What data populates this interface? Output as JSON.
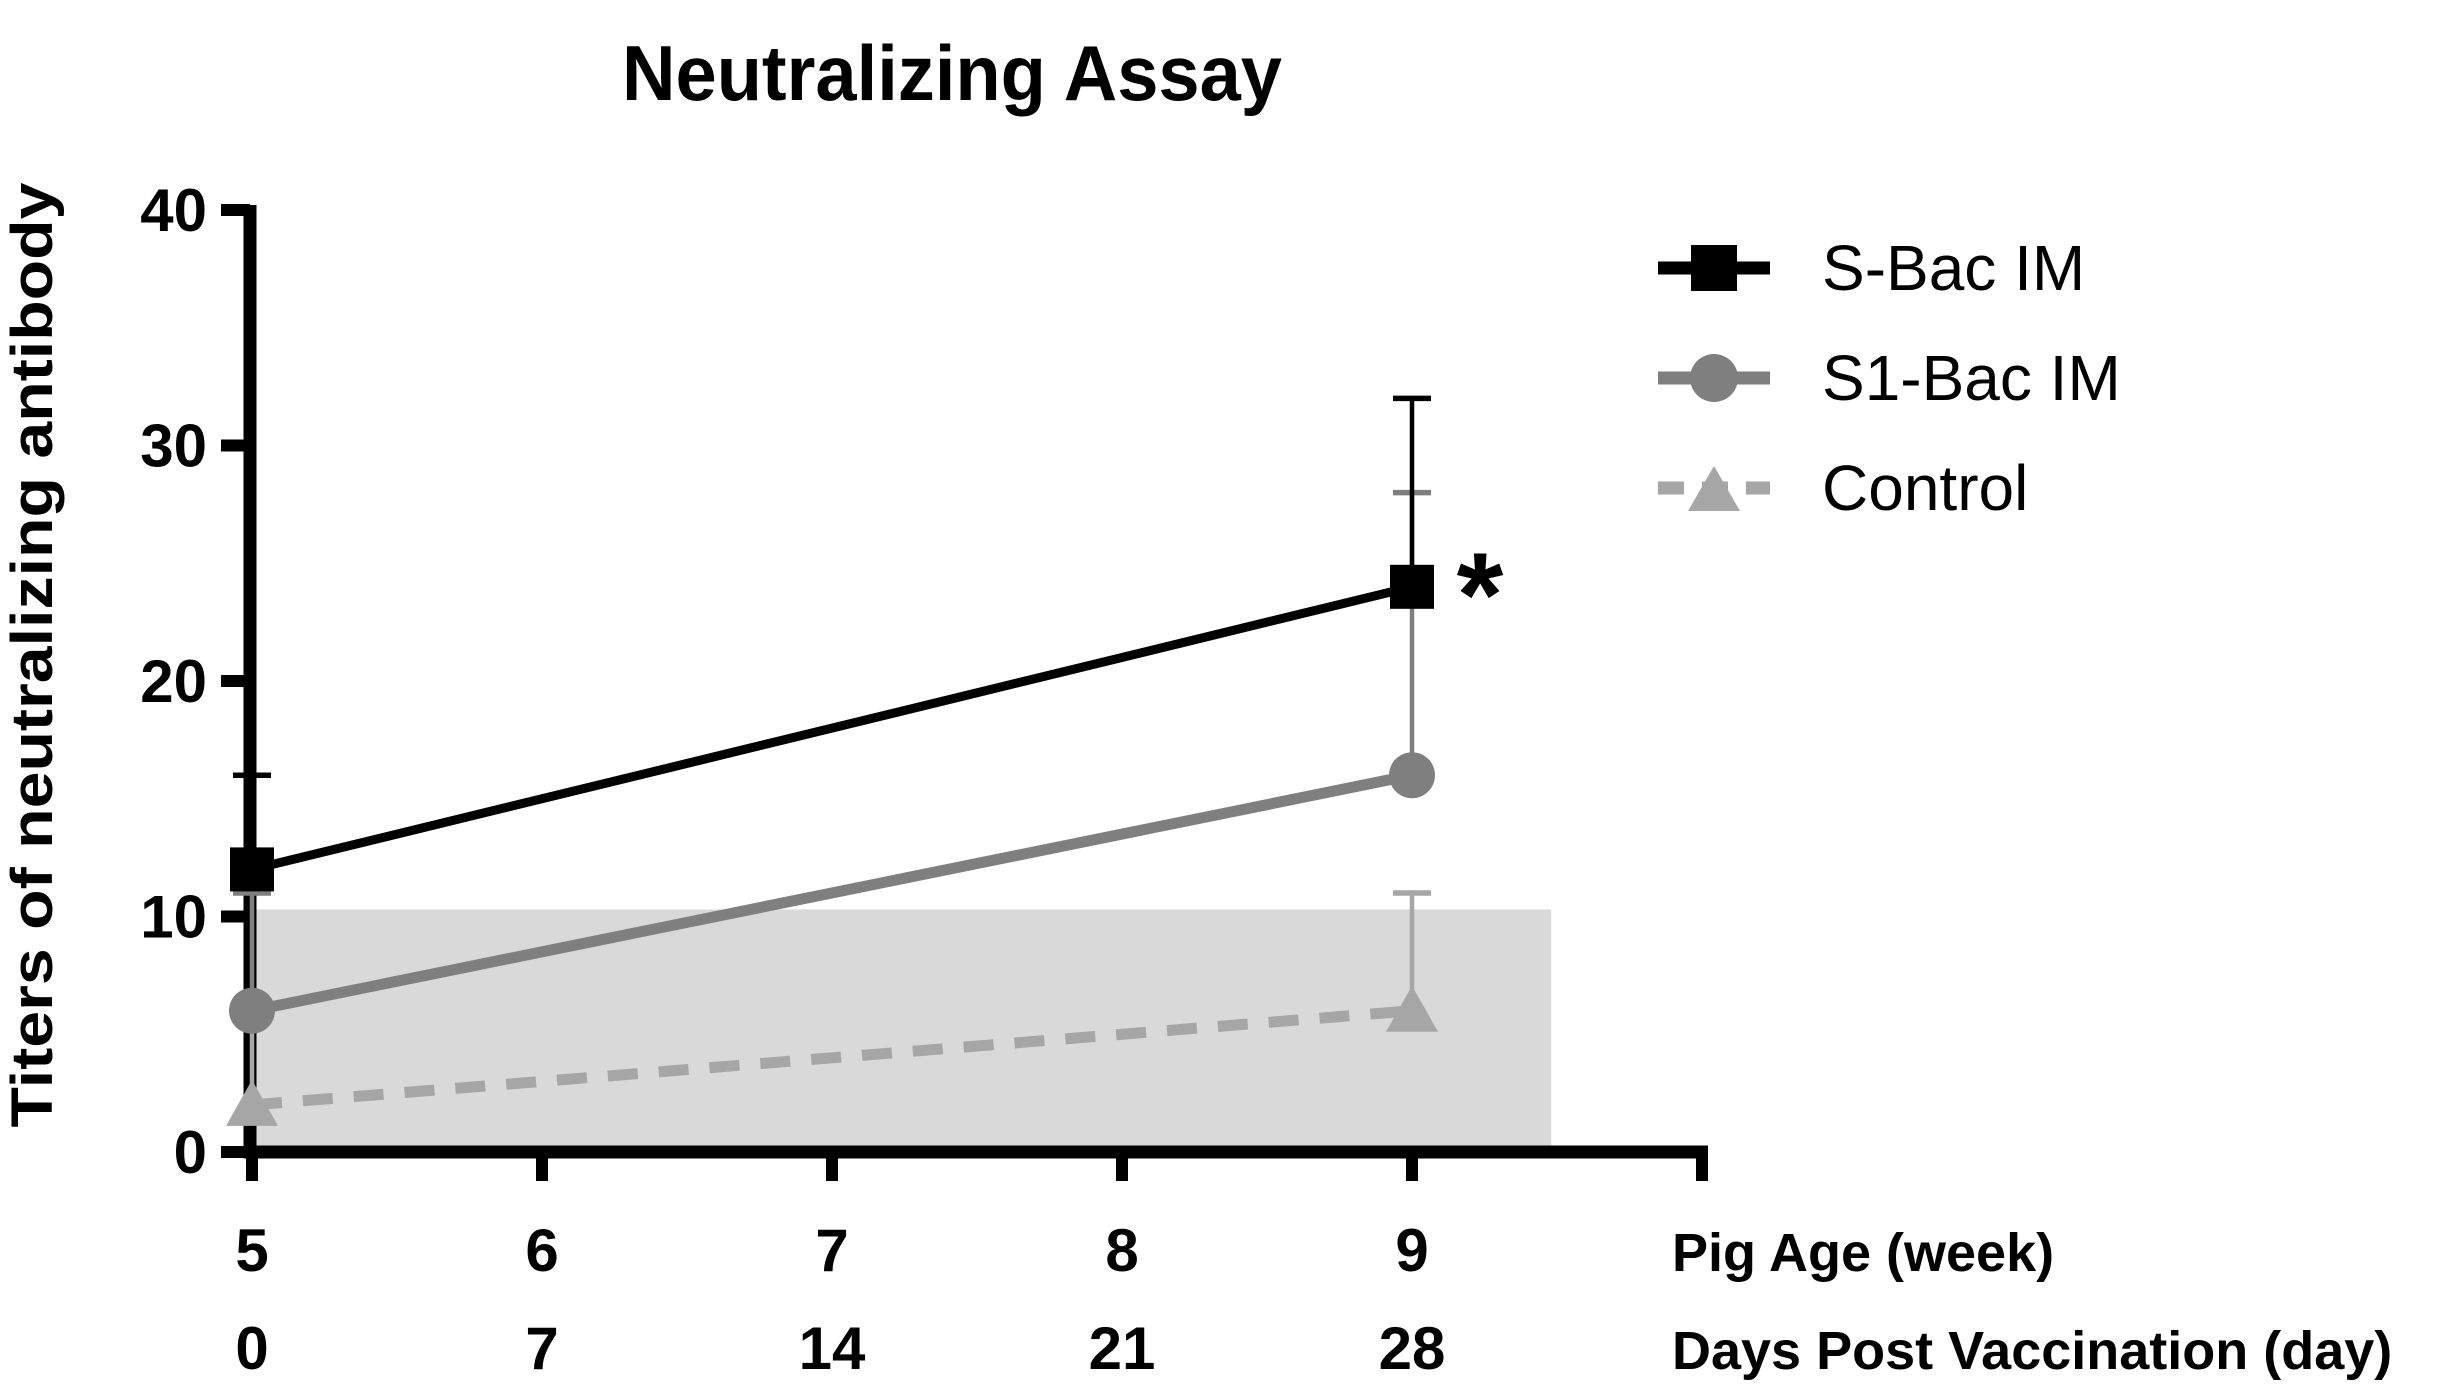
{
  "chart_data": {
    "type": "line",
    "title": "Neutralizing Assay",
    "ylabel": "Titers of neutralizing antibody",
    "ylim": [
      0,
      40
    ],
    "yticks": [
      40,
      30,
      20,
      10,
      0
    ],
    "x_axis_rows": [
      {
        "label": "Pig Age (week)",
        "ticks": [
          "5",
          "6",
          "7",
          "8",
          "9"
        ]
      },
      {
        "label": "Days Post Vaccination (day)",
        "ticks": [
          "0",
          "7",
          "14",
          "21",
          "28"
        ]
      }
    ],
    "grid": "off",
    "legend_position": "right",
    "series": [
      {
        "name": "S-Bac IM",
        "color": "#000000",
        "marker": "square",
        "line_style": "solid",
        "x_weeks": [
          5,
          9
        ],
        "values": [
          12,
          24
        ],
        "error_top": [
          16,
          32
        ]
      },
      {
        "name": "S1-Bac IM",
        "color": "#7f7f7f",
        "marker": "circle",
        "line_style": "solid",
        "x_weeks": [
          5,
          9
        ],
        "values": [
          6,
          16
        ],
        "error_top": [
          11,
          28
        ]
      },
      {
        "name": "Control",
        "color": "#a6a6a6",
        "marker": "triangle",
        "line_style": "dashed",
        "x_weeks": [
          5,
          9
        ],
        "values": [
          2,
          6
        ],
        "error_top": [
          6,
          11
        ]
      }
    ],
    "shaded_band": {
      "color": "#d9d9d9",
      "y_range": [
        0,
        10.3
      ],
      "x_range_weeks": [
        5,
        9.48
      ]
    },
    "annotation": {
      "text": "*",
      "series": "S-Bac IM",
      "at_week": 9,
      "at_value": 24
    }
  }
}
